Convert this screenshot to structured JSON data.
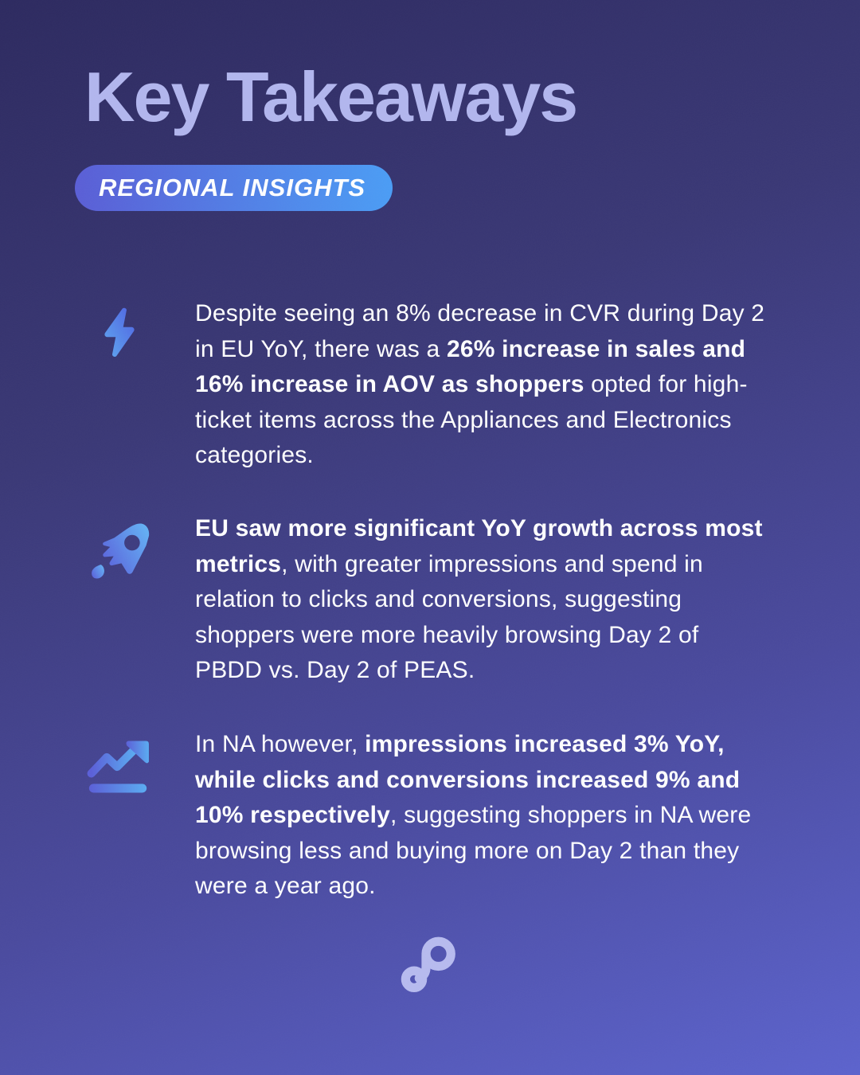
{
  "header": {
    "title": "Key Takeaways",
    "badge_label": "REGIONAL INSIGHTS"
  },
  "bullets": [
    {
      "icon": "lightning-bolt-icon",
      "segments": [
        {
          "text": "Despite seeing an 8% decrease in CVR during Day 2 in EU YoY, there was a ",
          "bold": false
        },
        {
          "text": "26% increase in sales and 16% increase in AOV as shoppers",
          "bold": true
        },
        {
          "text": " opted for high-ticket items across the Appliances and Electronics categories.",
          "bold": false
        }
      ]
    },
    {
      "icon": "rocket-icon",
      "segments": [
        {
          "text": "EU saw more significant YoY growth across most metrics",
          "bold": true
        },
        {
          "text": ", with greater impressions and spend in relation to clicks and conversions, suggesting shoppers were more heavily browsing Day 2 of PBDD vs. Day 2 of PEAS.",
          "bold": false
        }
      ]
    },
    {
      "icon": "trend-up-icon",
      "segments": [
        {
          "text": "In NA however, ",
          "bold": false
        },
        {
          "text": "impressions increased 3% YoY, while clicks and conversions increased 9% and 10% respectively",
          "bold": true
        },
        {
          "text": ", suggesting shoppers in NA were browsing less and buying more on Day 2 than they were a year ago.",
          "bold": false
        }
      ]
    }
  ],
  "footer": {
    "logo": "brand-logo-icon"
  },
  "colors": {
    "background_top": "#2d2a60",
    "background_bottom": "#5c63cd",
    "title_text": "#b2b6ee",
    "badge_gradient_start": "#5a5ed6",
    "badge_gradient_end": "#4b9df5",
    "icon_gradient_light": "#5fa8f0",
    "icon_gradient_dark": "#4f62e2",
    "body_text": "#ffffff",
    "logo_color": "#b7bbef"
  }
}
